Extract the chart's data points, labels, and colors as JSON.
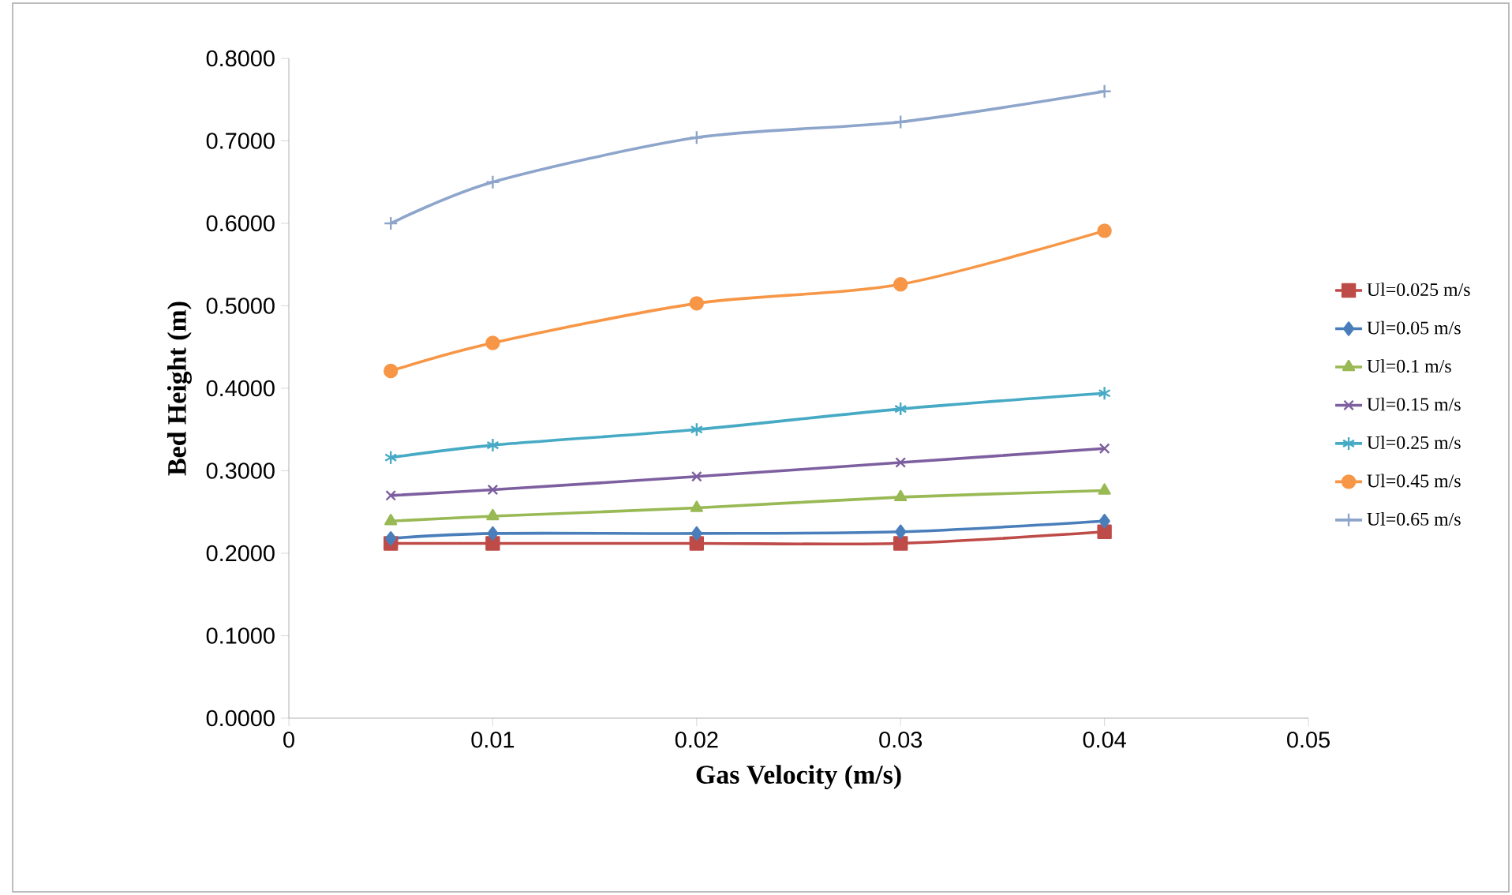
{
  "chart_data": {
    "type": "line",
    "xlabel": "Gas Velocity (m/s)",
    "ylabel": "Bed Height (m)",
    "x": [
      0.005,
      0.01,
      0.02,
      0.03,
      0.04
    ],
    "xlim": [
      0,
      0.05
    ],
    "xticks": [
      0,
      0.01,
      0.02,
      0.03,
      0.04,
      0.05
    ],
    "ylim": [
      0,
      0.8
    ],
    "yticks": [
      {
        "value": 0,
        "label": "0.0000"
      },
      {
        "value": 0.1,
        "label": "0.1000"
      },
      {
        "value": 0.2,
        "label": "0.2000"
      },
      {
        "value": 0.3,
        "label": "0.3000"
      },
      {
        "value": 0.4,
        "label": "0.4000"
      },
      {
        "value": 0.5,
        "label": "0.5000"
      },
      {
        "value": 0.6,
        "label": "0.6000"
      },
      {
        "value": 0.7,
        "label": "0.7000"
      },
      {
        "value": 0.8,
        "label": "0.8000"
      }
    ],
    "legend": "right",
    "grid": false,
    "series": [
      {
        "name": "Ul=0.025 m/s",
        "color": "#be4b48",
        "marker": "square",
        "values": [
          0.212,
          0.212,
          0.212,
          0.212,
          0.226
        ]
      },
      {
        "name": "Ul=0.05 m/s",
        "color": "#4a7ebb",
        "marker": "diamond",
        "values": [
          0.218,
          0.224,
          0.224,
          0.226,
          0.239
        ]
      },
      {
        "name": "Ul=0.1 m/s",
        "color": "#98b954",
        "marker": "triangle",
        "values": [
          0.239,
          0.245,
          0.255,
          0.268,
          0.276
        ]
      },
      {
        "name": "Ul=0.15 m/s",
        "color": "#7d5fa0",
        "marker": "x",
        "values": [
          0.27,
          0.277,
          0.293,
          0.31,
          0.327
        ]
      },
      {
        "name": "Ul=0.25 m/s",
        "color": "#46aac5",
        "marker": "cross",
        "values": [
          0.316,
          0.331,
          0.35,
          0.375,
          0.394
        ]
      },
      {
        "name": "Ul=0.45 m/s",
        "color": "#f79646",
        "marker": "circle",
        "values": [
          0.421,
          0.455,
          0.503,
          0.526,
          0.591
        ]
      },
      {
        "name": "Ul=0.65 m/s",
        "color": "#8ea5cb",
        "marker": "plus",
        "values": [
          0.6,
          0.65,
          0.704,
          0.723,
          0.76
        ]
      }
    ]
  }
}
